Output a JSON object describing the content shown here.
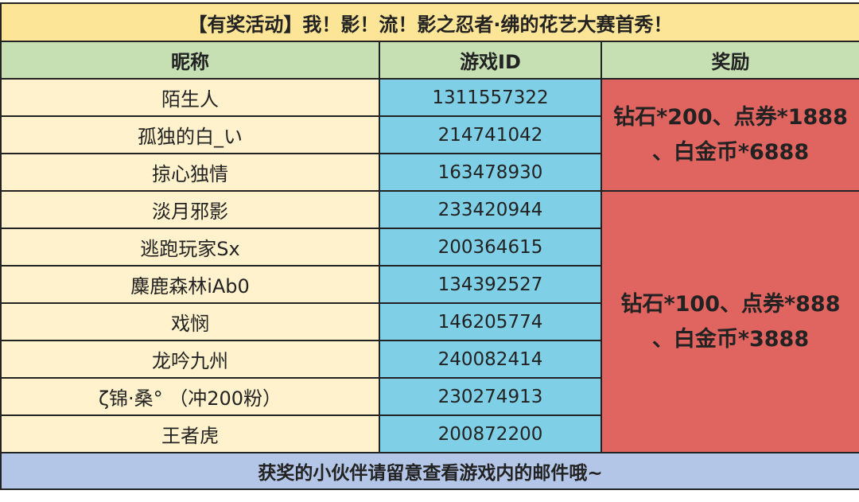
{
  "title": "【有奖活动】我！影！流！影之忍者·绋的花艺大赛首秀！",
  "headers": {
    "nickname": "昵称",
    "game_id": "游戏ID",
    "reward": "奖励"
  },
  "rows": [
    {
      "nickname": "陌生人",
      "game_id": "1311557322"
    },
    {
      "nickname": "孤独的白_い",
      "game_id": "214741042"
    },
    {
      "nickname": "掠心独情",
      "game_id": "163478930"
    },
    {
      "nickname": "淡月邪影",
      "game_id": "233420944"
    },
    {
      "nickname": "逃跑玩家Sx",
      "game_id": "200364615"
    },
    {
      "nickname": "麋鹿森林iAb0",
      "game_id": "134392527"
    },
    {
      "nickname": "戏悯",
      "game_id": "146205774"
    },
    {
      "nickname": "龙吟九州",
      "game_id": "240082414"
    },
    {
      "nickname": "ζ锦·桑° （冲200粉）",
      "game_id": "230274913"
    },
    {
      "nickname": "王者虎",
      "game_id": "200872200"
    }
  ],
  "rewards": [
    {
      "line1": "钻石*200、点券*1888",
      "line2": "、白金币*6888"
    },
    {
      "line1": "钻石*100、点券*888",
      "line2": "、白金币*3888"
    }
  ],
  "footer": "获奖的小伙伴请留意查看游戏内的邮件哦~",
  "colors": {
    "title_bg": "#fde597",
    "header_bg": "#c6e0b4",
    "name_bg": "#fff2cc",
    "id_bg": "#7fd0e6",
    "reward_bg": "#e0645f",
    "footer_bg": "#b4c6e7"
  }
}
